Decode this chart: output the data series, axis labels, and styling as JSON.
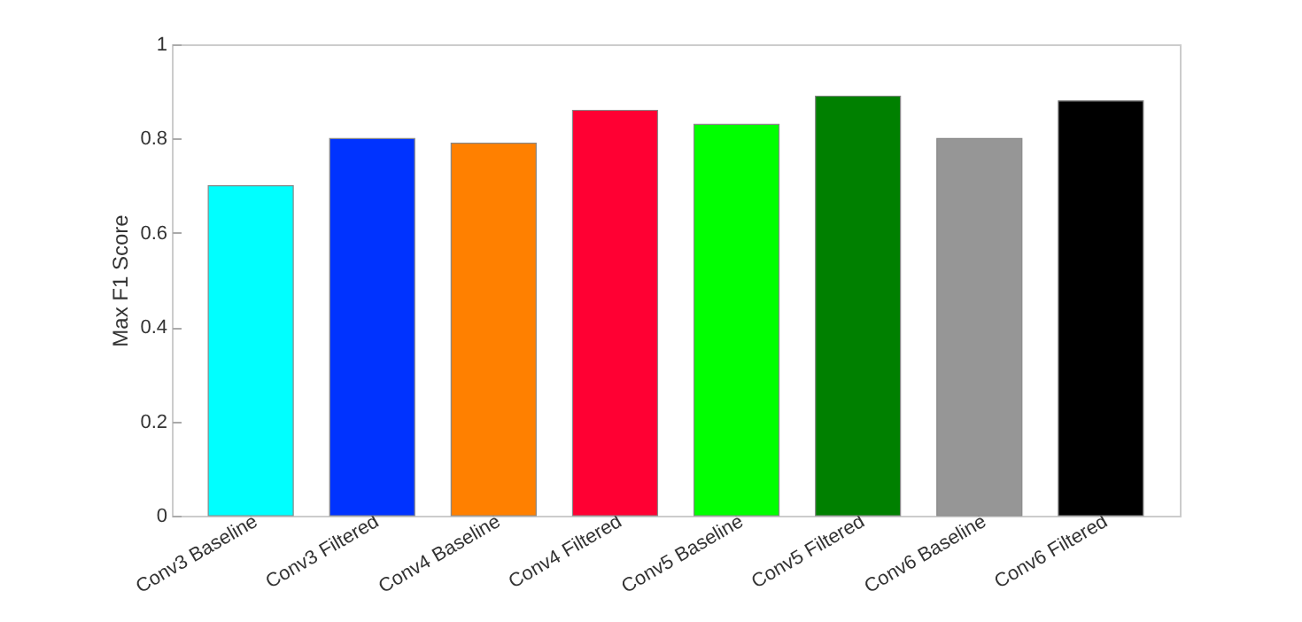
{
  "chart_data": {
    "type": "bar",
    "ylabel": "Max F1 Score",
    "categories": [
      "Conv3 Baseline",
      "Conv3 Filtered",
      "Conv4 Baseline",
      "Conv4 Filtered",
      "Conv5 Baseline",
      "Conv5 Filtered",
      "Conv6 Baseline",
      "Conv6 Filtered"
    ],
    "values": [
      0.7,
      0.8,
      0.79,
      0.86,
      0.83,
      0.89,
      0.8,
      0.88
    ],
    "colors": [
      "#00ffff",
      "#0033ff",
      "#ff8000",
      "#ff0033",
      "#00ff00",
      "#008000",
      "#969696",
      "#000000"
    ],
    "ylim": [
      0,
      1
    ],
    "yticks": [
      0,
      0.2,
      0.4,
      0.6,
      0.8,
      1
    ],
    "grid": false
  }
}
